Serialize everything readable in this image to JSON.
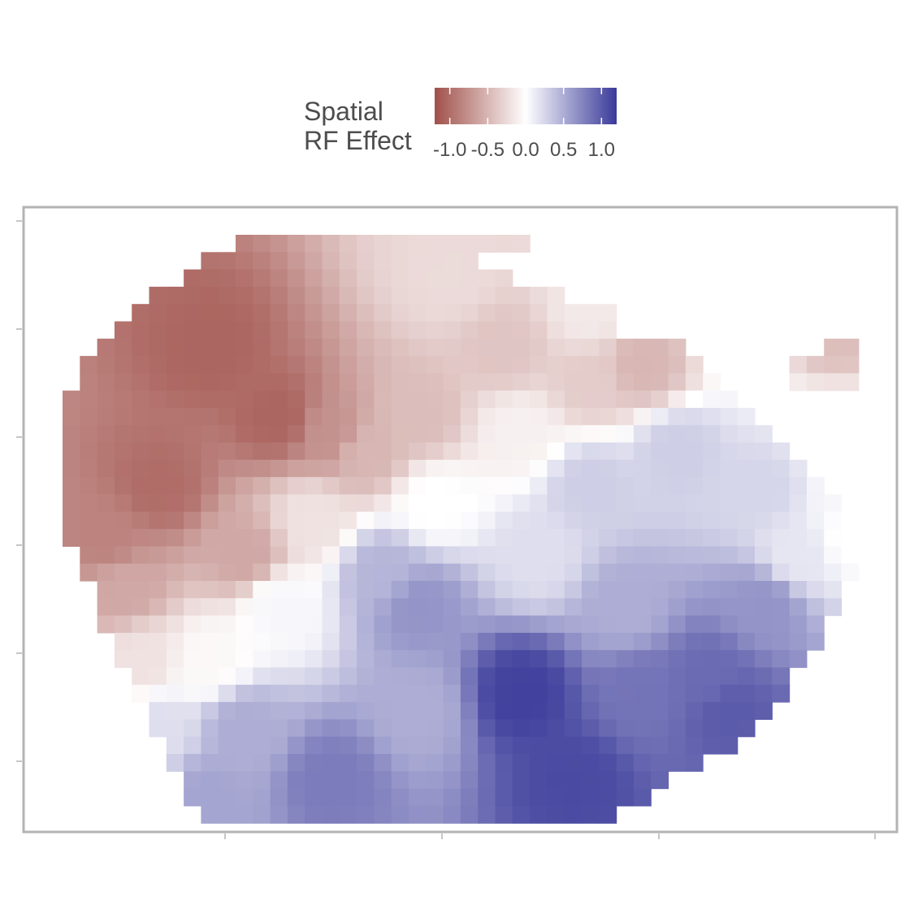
{
  "chart_data": {
    "type": "heatmap",
    "title": "",
    "xlabel": "",
    "ylabel": "",
    "x_tick_labels": [],
    "y_tick_labels": [],
    "grid": false,
    "colorbar": {
      "title_lines": [
        "Spatial",
        "RF Effect"
      ],
      "ticks": [
        -1.0,
        -0.5,
        0.0,
        0.5,
        1.0
      ],
      "tick_labels": [
        "-1.0",
        "-0.5",
        "0.0",
        "0.5",
        "1.0"
      ],
      "range": [
        -1.2,
        1.2
      ],
      "low_color": "#a0504a",
      "mid_color": "#ffffff",
      "high_color": "#3a3a9a",
      "placement": "top"
    },
    "grid_cols": 46,
    "grid_rows": 34,
    "row_extents": [
      [
        10,
        29
      ],
      [
        8,
        29
      ],
      [
        7,
        30
      ],
      [
        5,
        31
      ],
      [
        4,
        31
      ],
      [
        3,
        31
      ],
      [
        2,
        45
      ],
      [
        1,
        45
      ],
      [
        1,
        45
      ],
      [
        0,
        45
      ],
      [
        0,
        45
      ],
      [
        0,
        45
      ],
      [
        0,
        45
      ],
      [
        0,
        45
      ],
      [
        0,
        45
      ],
      [
        0,
        45
      ],
      [
        0,
        45
      ],
      [
        0,
        45
      ],
      [
        1,
        45
      ],
      [
        1,
        45
      ],
      [
        2,
        44
      ],
      [
        2,
        44
      ],
      [
        2,
        43
      ],
      [
        3,
        43
      ],
      [
        3,
        42
      ],
      [
        4,
        41
      ],
      [
        4,
        41
      ],
      [
        5,
        40
      ],
      [
        5,
        39
      ],
      [
        6,
        38
      ],
      [
        6,
        36
      ],
      [
        7,
        34
      ],
      [
        7,
        33
      ],
      [
        8,
        31
      ]
    ],
    "masked_cells": [
      [
        0,
        27
      ],
      [
        0,
        28
      ],
      [
        0,
        29
      ],
      [
        1,
        24
      ],
      [
        1,
        25
      ],
      [
        1,
        26
      ],
      [
        1,
        27
      ],
      [
        1,
        28
      ],
      [
        1,
        29
      ],
      [
        2,
        26
      ],
      [
        2,
        27
      ],
      [
        2,
        28
      ],
      [
        2,
        29
      ],
      [
        2,
        30
      ],
      [
        2,
        31
      ],
      [
        2,
        32
      ],
      [
        2,
        33
      ],
      [
        2,
        34
      ],
      [
        2,
        35
      ],
      [
        3,
        29
      ],
      [
        3,
        30
      ],
      [
        3,
        31
      ],
      [
        3,
        32
      ],
      [
        3,
        33
      ],
      [
        3,
        34
      ],
      [
        3,
        35
      ],
      [
        3,
        36
      ],
      [
        3,
        37
      ],
      [
        3,
        38
      ],
      [
        3,
        39
      ],
      [
        3,
        40
      ],
      [
        3,
        41
      ],
      [
        3,
        42
      ],
      [
        3,
        43
      ],
      [
        3,
        44
      ],
      [
        3,
        45
      ],
      [
        4,
        33
      ],
      [
        4,
        34
      ],
      [
        4,
        35
      ],
      [
        4,
        36
      ],
      [
        4,
        37
      ],
      [
        4,
        38
      ],
      [
        4,
        39
      ],
      [
        4,
        40
      ],
      [
        4,
        41
      ],
      [
        4,
        42
      ],
      [
        4,
        43
      ],
      [
        4,
        44
      ],
      [
        4,
        45
      ],
      [
        5,
        35
      ],
      [
        5,
        36
      ],
      [
        5,
        37
      ],
      [
        5,
        38
      ],
      [
        5,
        39
      ],
      [
        5,
        40
      ],
      [
        5,
        41
      ],
      [
        5,
        42
      ],
      [
        5,
        43
      ],
      [
        5,
        44
      ],
      [
        5,
        45
      ],
      [
        6,
        36
      ],
      [
        6,
        37
      ],
      [
        6,
        38
      ],
      [
        6,
        39
      ],
      [
        6,
        40
      ],
      [
        6,
        41
      ],
      [
        6,
        42
      ],
      [
        6,
        43
      ],
      [
        7,
        37
      ],
      [
        7,
        38
      ],
      [
        7,
        39
      ],
      [
        7,
        40
      ],
      [
        7,
        41
      ],
      [
        8,
        38
      ],
      [
        8,
        39
      ],
      [
        8,
        40
      ],
      [
        8,
        41
      ],
      [
        9,
        39
      ],
      [
        9,
        40
      ],
      [
        9,
        41
      ],
      [
        9,
        42
      ],
      [
        9,
        43
      ],
      [
        9,
        44
      ],
      [
        9,
        45
      ],
      [
        10,
        40
      ],
      [
        10,
        41
      ],
      [
        10,
        42
      ],
      [
        10,
        43
      ],
      [
        10,
        44
      ],
      [
        10,
        45
      ],
      [
        11,
        41
      ],
      [
        11,
        42
      ],
      [
        11,
        43
      ],
      [
        11,
        44
      ],
      [
        11,
        45
      ],
      [
        12,
        42
      ],
      [
        12,
        43
      ],
      [
        12,
        44
      ],
      [
        12,
        45
      ],
      [
        13,
        43
      ],
      [
        13,
        44
      ],
      [
        13,
        45
      ],
      [
        14,
        44
      ],
      [
        14,
        45
      ],
      [
        15,
        45
      ],
      [
        16,
        45
      ]
    ],
    "control_points": [
      {
        "x": 8,
        "y": 6,
        "value": -1.05
      },
      {
        "x": 12,
        "y": 10,
        "value": -1.05
      },
      {
        "x": 5,
        "y": 14,
        "value": -1.0
      },
      {
        "x": 2,
        "y": 17,
        "value": -0.85
      },
      {
        "x": 3,
        "y": 20,
        "value": -0.6
      },
      {
        "x": 10,
        "y": 18,
        "value": -0.6
      },
      {
        "x": 14,
        "y": 16,
        "value": -0.2
      },
      {
        "x": 17,
        "y": 12,
        "value": -0.5
      },
      {
        "x": 20,
        "y": 10,
        "value": -0.45
      },
      {
        "x": 22,
        "y": 2,
        "value": -0.25
      },
      {
        "x": 25,
        "y": 6,
        "value": -0.4
      },
      {
        "x": 30,
        "y": 8,
        "value": -0.35
      },
      {
        "x": 33,
        "y": 7,
        "value": -0.5
      },
      {
        "x": 30,
        "y": 4,
        "value": -0.15
      },
      {
        "x": 37,
        "y": 1,
        "value": -0.15
      },
      {
        "x": 39,
        "y": 5,
        "value": 0.05
      },
      {
        "x": 44,
        "y": 5,
        "value": -0.45
      },
      {
        "x": 44,
        "y": 11,
        "value": 0.0
      },
      {
        "x": 35,
        "y": 12,
        "value": 0.3
      },
      {
        "x": 30,
        "y": 14,
        "value": 0.3
      },
      {
        "x": 21,
        "y": 15,
        "value": 0.0
      },
      {
        "x": 18,
        "y": 19,
        "value": 0.45
      },
      {
        "x": 20,
        "y": 21,
        "value": 0.65
      },
      {
        "x": 12,
        "y": 21,
        "value": 0.05
      },
      {
        "x": 8,
        "y": 24,
        "value": -0.05
      },
      {
        "x": 4,
        "y": 24,
        "value": -0.2
      },
      {
        "x": 5,
        "y": 28,
        "value": 0.2
      },
      {
        "x": 10,
        "y": 28,
        "value": 0.5
      },
      {
        "x": 8,
        "y": 32,
        "value": 0.55
      },
      {
        "x": 15,
        "y": 31,
        "value": 0.8
      },
      {
        "x": 20,
        "y": 27,
        "value": 0.5
      },
      {
        "x": 26,
        "y": 26,
        "value": 1.15
      },
      {
        "x": 29,
        "y": 31,
        "value": 1.1
      },
      {
        "x": 33,
        "y": 26,
        "value": 0.85
      },
      {
        "x": 37,
        "y": 25,
        "value": 0.9
      },
      {
        "x": 38,
        "y": 27,
        "value": 1.0
      },
      {
        "x": 32,
        "y": 21,
        "value": 0.5
      },
      {
        "x": 40,
        "y": 21,
        "value": 0.65
      },
      {
        "x": 42,
        "y": 18,
        "value": 0.15
      },
      {
        "x": 45,
        "y": 17,
        "value": 0.0
      },
      {
        "x": 27,
        "y": 18,
        "value": 0.2
      },
      {
        "x": 15,
        "y": 11,
        "value": -0.75
      },
      {
        "x": 26,
        "y": 11,
        "value": -0.1
      },
      {
        "x": 40,
        "y": 14,
        "value": 0.25
      },
      {
        "x": 45,
        "y": 14,
        "value": 0.05
      }
    ]
  }
}
